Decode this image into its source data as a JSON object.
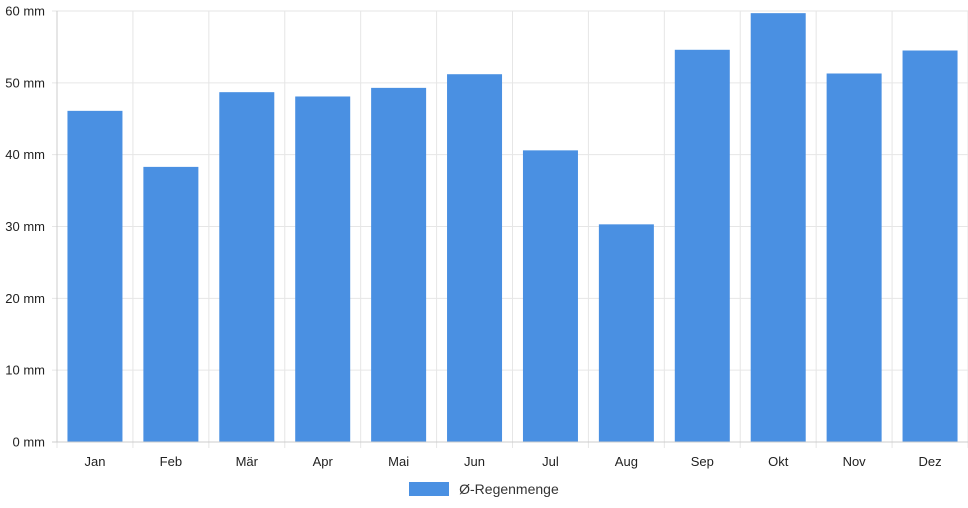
{
  "chart_data": {
    "type": "bar",
    "categories": [
      "Jan",
      "Feb",
      "Mär",
      "Apr",
      "Mai",
      "Jun",
      "Jul",
      "Aug",
      "Sep",
      "Okt",
      "Nov",
      "Dez"
    ],
    "series": [
      {
        "name": "Ø-Regenmenge",
        "values": [
          46.1,
          38.3,
          48.7,
          48.1,
          49.3,
          51.2,
          40.6,
          30.3,
          54.6,
          59.7,
          51.3,
          54.5
        ]
      }
    ],
    "y_ticks": [
      "0 mm",
      "10 mm",
      "20 mm",
      "30 mm",
      "40 mm",
      "50 mm",
      "60 mm"
    ],
    "ylim": [
      0,
      60
    ],
    "grid": true,
    "legend_position": "bottom",
    "bar_color": "#4a90e2",
    "grid_color": "#e6e6e6",
    "axis_color": "#cccccc"
  }
}
